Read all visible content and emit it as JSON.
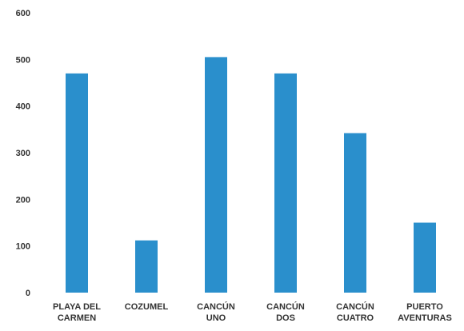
{
  "chart_data": {
    "type": "bar",
    "title": "",
    "xlabel": "",
    "ylabel": "",
    "ylim": [
      0,
      600
    ],
    "yticks": [
      "0",
      "100",
      "200",
      "300",
      "400",
      "500",
      "600"
    ],
    "grid": false,
    "legend": "none",
    "categories": [
      [
        "PLAYA DEL",
        "CARMEN"
      ],
      [
        "COZUMEL"
      ],
      [
        "CANCÚN",
        "UNO"
      ],
      [
        "CANCÚN",
        "DOS"
      ],
      [
        "CANCÚN",
        "CUATRO"
      ],
      [
        "PUERTO",
        "AVENTURAS"
      ]
    ],
    "values": [
      470,
      112,
      505,
      470,
      342,
      150
    ],
    "colors": {
      "bar": "#2a8fcc",
      "axis_text": "#333333"
    }
  }
}
